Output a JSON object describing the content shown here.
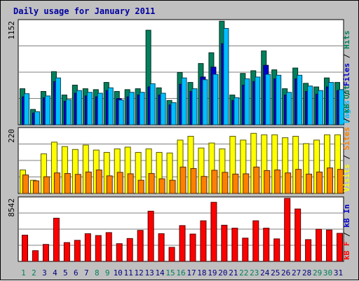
{
  "chart_data": [
    {
      "type": "bar",
      "title": "Daily usage for January 2011",
      "ymax_label": "1152",
      "ylim": [
        0,
        1152
      ],
      "categories": [
        "1",
        "2",
        "3",
        "4",
        "5",
        "6",
        "7",
        "8",
        "9",
        "10",
        "11",
        "12",
        "13",
        "14",
        "15",
        "16",
        "17",
        "18",
        "19",
        "20",
        "21",
        "22",
        "23",
        "24",
        "25",
        "26",
        "27",
        "28",
        "29",
        "30",
        "31"
      ],
      "weekend_days": [
        "1",
        "2",
        "8",
        "9",
        "15",
        "16",
        "22",
        "23",
        "29",
        "30"
      ],
      "series": [
        {
          "name": "Hits",
          "color": "#00805c",
          "values": [
            400,
            170,
            370,
            590,
            330,
            440,
            400,
            390,
            470,
            370,
            390,
            400,
            1050,
            410,
            270,
            580,
            470,
            680,
            800,
            1150,
            330,
            570,
            600,
            820,
            610,
            400,
            630,
            460,
            420,
            520,
            470
          ]
        },
        {
          "name": "Files",
          "color": "#0000cc",
          "values": [
            310,
            130,
            300,
            480,
            260,
            350,
            320,
            310,
            380,
            290,
            310,
            330,
            420,
            330,
            220,
            450,
            370,
            530,
            640,
            900,
            270,
            440,
            480,
            660,
            510,
            330,
            510,
            370,
            340,
            420,
            380
          ]
        },
        {
          "name": "Pages",
          "color": "#00bfff",
          "values": [
            345,
            145,
            320,
            520,
            280,
            380,
            360,
            350,
            410,
            275,
            360,
            360,
            455,
            350,
            245,
            520,
            400,
            500,
            560,
            1070,
            300,
            510,
            530,
            560,
            550,
            360,
            550,
            430,
            380,
            470,
            390
          ]
        }
      ],
      "right_labels": [
        "Pages",
        "Files",
        "Hits"
      ]
    },
    {
      "type": "bar",
      "ymax_label": "220",
      "ylim": [
        0,
        220
      ],
      "categories": [
        "1",
        "2",
        "3",
        "4",
        "5",
        "6",
        "7",
        "8",
        "9",
        "10",
        "11",
        "12",
        "13",
        "14",
        "15",
        "16",
        "17",
        "18",
        "19",
        "20",
        "21",
        "22",
        "23",
        "24",
        "25",
        "26",
        "27",
        "28",
        "29",
        "30",
        "31"
      ],
      "series": [
        {
          "name": "Visits",
          "color": "#ffff00",
          "values": [
            80,
            45,
            135,
            175,
            160,
            150,
            165,
            148,
            140,
            152,
            158,
            140,
            152,
            140,
            138,
            182,
            195,
            155,
            172,
            152,
            195,
            182,
            205,
            200,
            200,
            190,
            195,
            170,
            182,
            200,
            200
          ]
        },
        {
          "name": "Sites",
          "color": "#ff8000",
          "values": [
            63,
            43,
            57,
            70,
            68,
            65,
            73,
            80,
            60,
            72,
            67,
            45,
            68,
            50,
            45,
            90,
            85,
            58,
            79,
            72,
            66,
            67,
            90,
            78,
            80,
            70,
            82,
            66,
            73,
            87,
            82
          ]
        }
      ],
      "right_labels": [
        "Visits",
        "Sites",
        "kB Out"
      ]
    },
    {
      "type": "bar",
      "ymax_label": "8542",
      "ylim": [
        0,
        8542
      ],
      "categories": [
        "1",
        "2",
        "3",
        "4",
        "5",
        "6",
        "7",
        "8",
        "9",
        "10",
        "11",
        "12",
        "13",
        "14",
        "15",
        "16",
        "17",
        "18",
        "19",
        "20",
        "21",
        "22",
        "23",
        "24",
        "25",
        "26",
        "27",
        "28",
        "29",
        "30",
        "31"
      ],
      "series": [
        {
          "name": "kB F",
          "color": "#ff0000",
          "values": [
            3550,
            1450,
            2300,
            5850,
            2550,
            2850,
            3750,
            3500,
            3900,
            2400,
            3100,
            4200,
            6800,
            3750,
            1900,
            4850,
            3700,
            5500,
            8000,
            4900,
            4500,
            3150,
            5500,
            4500,
            3050,
            8542,
            7100,
            2950,
            4350,
            4250,
            3800
          ]
        }
      ],
      "right_labels": [
        "kB F",
        "kB In"
      ]
    }
  ],
  "colors": {
    "background": "#c0c0c0",
    "plot_background": "#ffffff",
    "title": "#0000a0",
    "weekday_label": "#000080",
    "weekend_label": "#00805c"
  }
}
